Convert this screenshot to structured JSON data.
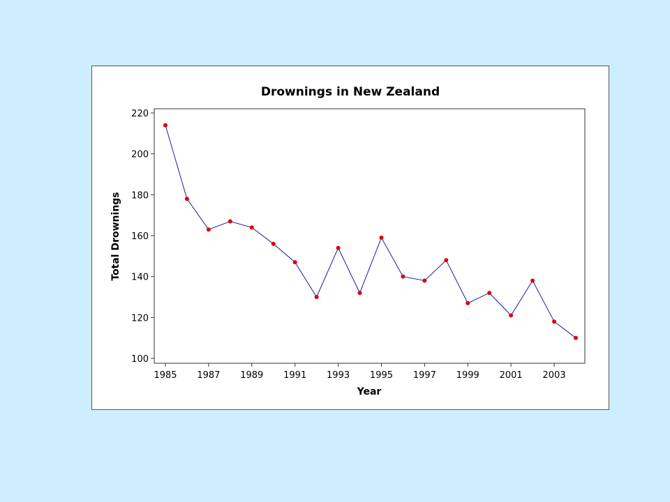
{
  "colors": {
    "background": "#cceeff",
    "panel": "#ffffff",
    "line": "#1a1aa6",
    "marker": "#e00000"
  },
  "chart_data": {
    "type": "line",
    "title": "Drownings in New Zealand",
    "xlabel": "Year",
    "ylabel": "Total Drownings",
    "xlim": [
      1985,
      2004
    ],
    "ylim": [
      100,
      220
    ],
    "x_ticks": [
      1985,
      1987,
      1989,
      1991,
      1993,
      1995,
      1997,
      1999,
      2001,
      2003
    ],
    "y_ticks": [
      100,
      120,
      140,
      160,
      180,
      200,
      220
    ],
    "x_tick_labels": [
      "1985",
      "1987",
      "1989",
      "1991",
      "1993",
      "1995",
      "1997",
      "1999",
      "2001",
      "2003"
    ],
    "y_tick_labels": [
      "100",
      "120",
      "140",
      "160",
      "180",
      "200",
      "220"
    ],
    "grid": false,
    "series": [
      {
        "x": [
          1985,
          1986,
          1987,
          1988,
          1989,
          1990,
          1991,
          1992,
          1993,
          1994,
          1995,
          1996,
          1997,
          1998,
          1999,
          2000,
          2001,
          2002,
          2003,
          2004
        ],
        "values": [
          214,
          178,
          163,
          167,
          164,
          156,
          147,
          130,
          154,
          132,
          159,
          140,
          138,
          148,
          127,
          132,
          121,
          138,
          118,
          110
        ]
      }
    ]
  }
}
